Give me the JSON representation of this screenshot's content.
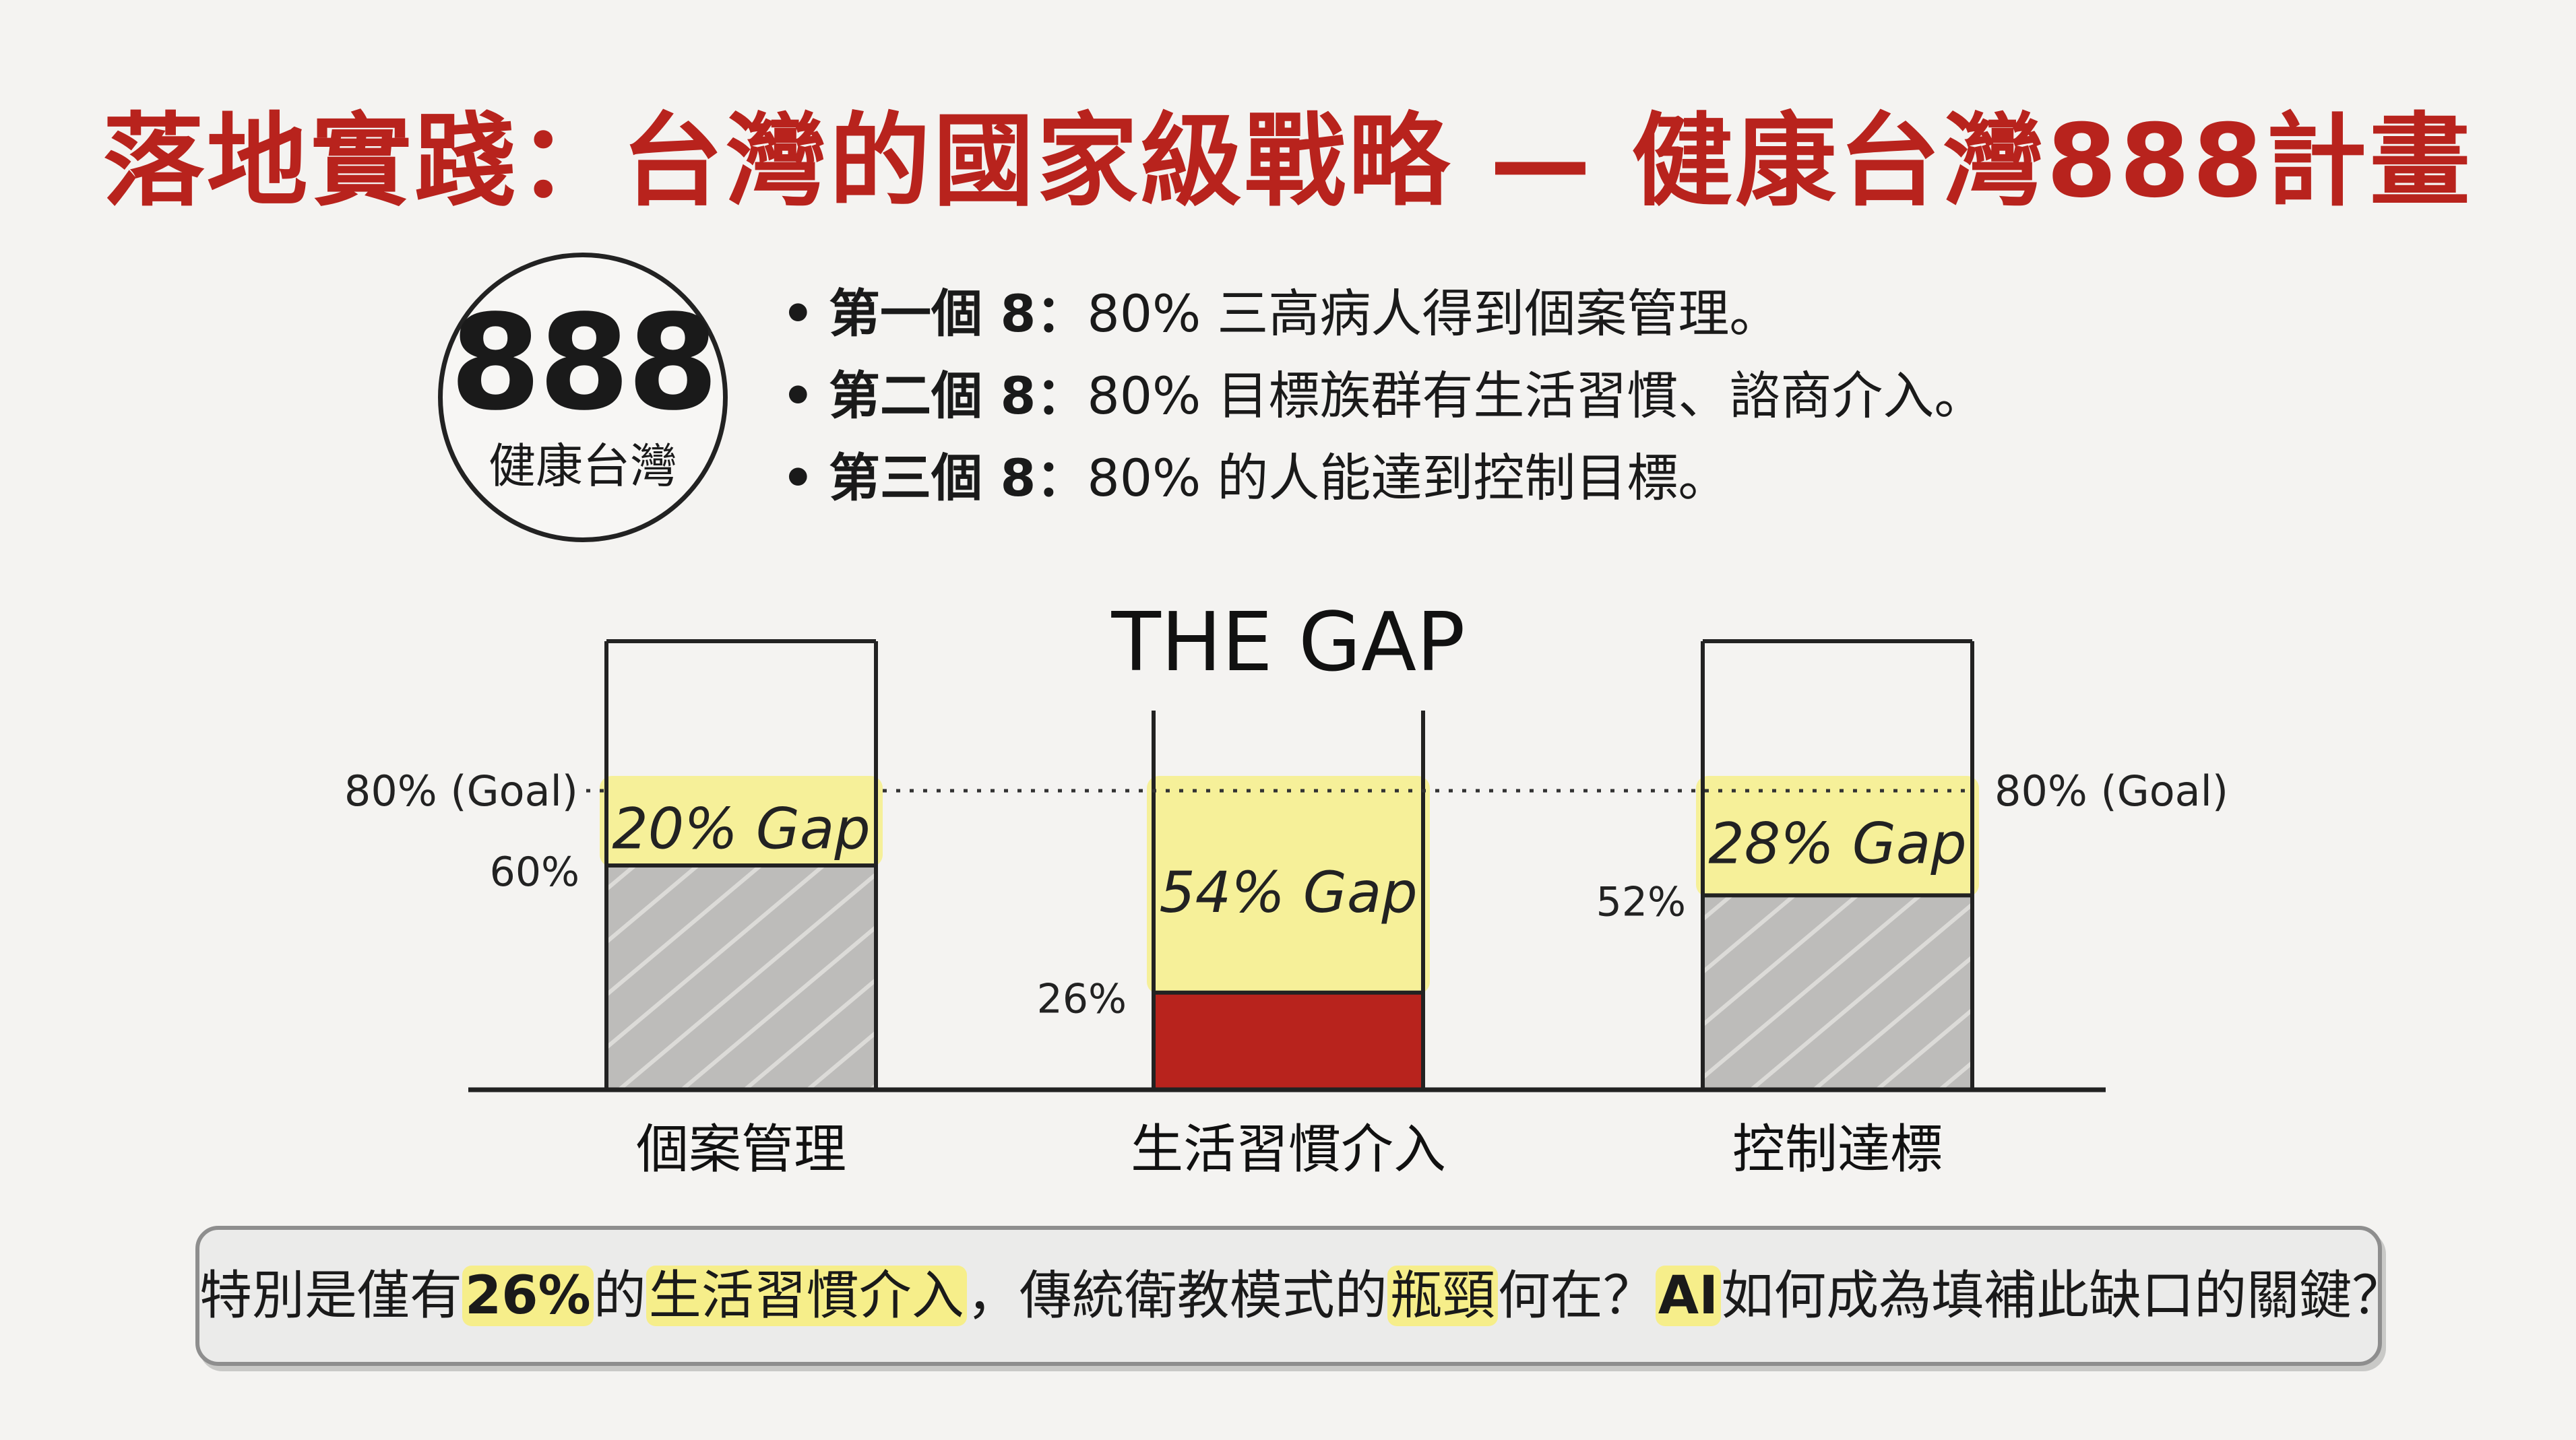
{
  "title": "落地實踐：台灣的國家級戰略 — 健康台灣888計畫",
  "badge": {
    "number": "888",
    "label": "健康台灣"
  },
  "points": [
    {
      "head": "第一個 8：",
      "text": "80% 三高病人得到個案管理。"
    },
    {
      "head": "第二個 8：",
      "text": "80% 目標族群有生活習慣、諮商介入。"
    },
    {
      "head": "第三個 8：",
      "text": "80% 的人能達到控制目標。"
    }
  ],
  "bullet": "•",
  "chart_data": {
    "type": "bar",
    "title": "THE GAP",
    "categories": [
      "個案管理",
      "生活習慣介入",
      "控制達標"
    ],
    "values": [
      60,
      26,
      52
    ],
    "value_labels": [
      "60%",
      "26%",
      "52%"
    ],
    "goal": 80,
    "goal_label": "80% (Goal)",
    "gap_labels": [
      "20% Gap",
      "54% Gap",
      "28% Gap"
    ],
    "ylim": [
      0,
      100
    ],
    "colors": {
      "bar": "#bdbcba",
      "highlight_bar": "#b8231d",
      "gap": "#f6ee8a",
      "goal_line": "#333333"
    }
  },
  "question": {
    "parts": [
      {
        "text": "特別是僅有",
        "style": "plain"
      },
      {
        "text": "26%",
        "style": "hl-bold"
      },
      {
        "text": "的",
        "style": "plain"
      },
      {
        "text": "生活習慣介入",
        "style": "hl"
      },
      {
        "text": "，傳統衛教模式的",
        "style": "plain"
      },
      {
        "text": "瓶頸",
        "style": "hl"
      },
      {
        "text": "何在？",
        "style": "plain"
      },
      {
        "text": "AI",
        "style": "hl-bold"
      },
      {
        "text": "如何成為填補此缺口的關鍵？",
        "style": "plain"
      }
    ]
  },
  "colors": {
    "title": "#b8231d",
    "background": "#f4f3f1"
  }
}
